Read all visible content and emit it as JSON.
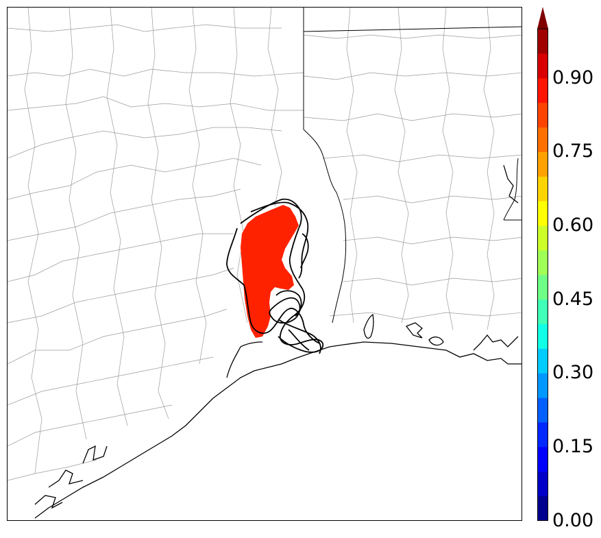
{
  "map": {
    "state_line_color": "#000000",
    "county_line_color": "#9a9a9a",
    "coast_line_color": "#000000",
    "probability_fill_color": "#ff2200",
    "contour_color": "#000000"
  },
  "colorbar": {
    "vmin": 0.0,
    "vmax": 1.0,
    "extend": "max",
    "tick_labels": [
      "0.00",
      "0.15",
      "0.30",
      "0.45",
      "0.60",
      "0.75",
      "0.90"
    ],
    "tick_values": [
      0.0,
      0.15,
      0.3,
      0.45,
      0.6,
      0.75,
      0.9
    ],
    "colors": [
      "#00008f",
      "#0000c8",
      "#0000ff",
      "#0028ff",
      "#0060ff",
      "#0098ff",
      "#00ccff",
      "#10ffe6",
      "#40ffb6",
      "#70ff86",
      "#a0ff56",
      "#ccff2a",
      "#ffff00",
      "#ffd400",
      "#ffa200",
      "#ff7000",
      "#ff4400",
      "#ff1400",
      "#d80000",
      "#a00000"
    ],
    "extend_color": "#800000"
  }
}
